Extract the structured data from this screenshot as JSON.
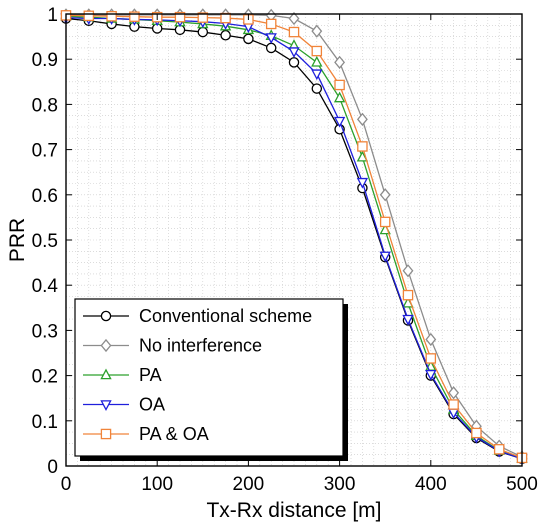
{
  "chart_data": {
    "type": "line",
    "xlabel": "Tx-Rx distance [m]",
    "ylabel": "PRR",
    "xlim": [
      0,
      500
    ],
    "ylim": [
      0,
      1
    ],
    "xticks": [
      0,
      100,
      200,
      300,
      400,
      500
    ],
    "yticks": [
      0,
      0.1,
      0.2,
      0.3,
      0.4,
      0.5,
      0.6,
      0.7,
      0.8,
      0.9,
      1
    ],
    "grid": true,
    "legend_position": "bottom-left",
    "x": [
      0,
      25,
      50,
      75,
      100,
      125,
      150,
      175,
      200,
      225,
      250,
      275,
      300,
      325,
      350,
      375,
      400,
      425,
      450,
      475,
      500
    ],
    "series": [
      {
        "name": "Conventional scheme",
        "color": "#000000",
        "marker": "circle",
        "values": [
          0.99,
          0.985,
          0.978,
          0.972,
          0.968,
          0.965,
          0.96,
          0.953,
          0.945,
          0.925,
          0.893,
          0.835,
          0.745,
          0.615,
          0.462,
          0.322,
          0.2,
          0.115,
          0.062,
          0.032,
          0.016
        ]
      },
      {
        "name": "No interference",
        "color": "#8c8c8c",
        "marker": "diamond",
        "values": [
          0.998,
          0.998,
          0.998,
          0.998,
          0.998,
          0.998,
          0.998,
          0.998,
          0.998,
          0.997,
          0.99,
          0.962,
          0.893,
          0.767,
          0.6,
          0.432,
          0.28,
          0.162,
          0.088,
          0.044,
          0.02
        ]
      },
      {
        "name": "PA",
        "color": "#2ca02c",
        "marker": "triangle-up",
        "values": [
          0.995,
          0.993,
          0.99,
          0.988,
          0.985,
          0.982,
          0.978,
          0.973,
          0.965,
          0.952,
          0.93,
          0.893,
          0.814,
          0.683,
          0.522,
          0.36,
          0.22,
          0.125,
          0.067,
          0.034,
          0.017
        ]
      },
      {
        "name": "OA",
        "color": "#1f1fdc",
        "marker": "triangle-down",
        "values": [
          0.992,
          0.99,
          0.99,
          0.988,
          0.987,
          0.985,
          0.983,
          0.979,
          0.972,
          0.948,
          0.917,
          0.868,
          0.763,
          0.628,
          0.465,
          0.325,
          0.203,
          0.118,
          0.064,
          0.033,
          0.016
        ]
      },
      {
        "name": "PA & OA",
        "color": "#f0843a",
        "marker": "square",
        "values": [
          0.997,
          0.996,
          0.995,
          0.994,
          0.993,
          0.993,
          0.992,
          0.991,
          0.988,
          0.978,
          0.96,
          0.918,
          0.843,
          0.707,
          0.54,
          0.378,
          0.238,
          0.136,
          0.073,
          0.037,
          0.018
        ]
      }
    ]
  }
}
